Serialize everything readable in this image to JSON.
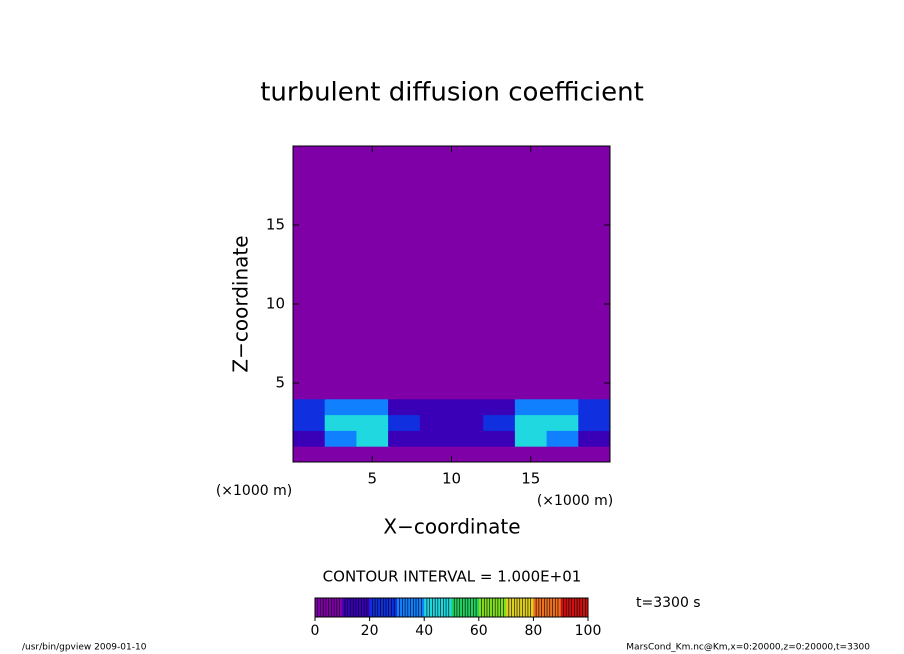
{
  "chart_data": {
    "type": "contour",
    "title": "turbulent diffusion coefficient",
    "xlabel": "X−coordinate",
    "ylabel": "Z−coordinate",
    "xunit": "(×1000 m)",
    "yunit": "(×1000 m)",
    "xlim": [
      0,
      20
    ],
    "xticks": [
      5,
      10,
      15
    ],
    "ylim": [
      0,
      20
    ],
    "yticks": [
      5,
      10,
      15
    ],
    "x": [
      1,
      3,
      5,
      7,
      9,
      11,
      13,
      15,
      17,
      19
    ],
    "z": [
      0.5,
      1.5,
      2.5,
      3.5,
      4.5,
      7,
      10,
      13,
      16,
      19
    ],
    "values": [
      [
        5,
        5,
        5,
        5,
        5,
        5,
        5,
        5,
        5,
        5
      ],
      [
        10,
        30,
        40,
        15,
        15,
        15,
        15,
        40,
        30,
        10
      ],
      [
        25,
        40,
        45,
        20,
        15,
        15,
        20,
        45,
        40,
        25
      ],
      [
        20,
        30,
        30,
        15,
        10,
        10,
        15,
        30,
        30,
        20
      ],
      [
        0,
        0,
        0,
        0,
        0,
        0,
        0,
        0,
        0,
        0
      ],
      [
        0,
        0,
        0,
        0,
        0,
        0,
        0,
        0,
        0,
        0
      ],
      [
        0,
        0,
        0,
        0,
        0,
        0,
        0,
        0,
        0,
        0
      ],
      [
        0,
        0,
        0,
        0,
        0,
        0,
        0,
        0,
        0,
        0
      ],
      [
        0,
        0,
        0,
        0,
        0,
        0,
        0,
        0,
        0,
        0
      ],
      [
        0,
        0,
        0,
        0,
        0,
        0,
        0,
        0,
        0,
        0
      ]
    ],
    "colors": [
      "#8000a8",
      "#3a00b8",
      "#1030e0",
      "#1080ff",
      "#20d8e0",
      "#20d060",
      "#80e020",
      "#e0d020",
      "#f07020",
      "#d01010"
    ],
    "contour_label": "CONTOUR INTERVAL = 1.000E+01",
    "colorbar_lim": [
      0,
      100
    ],
    "colorbar_ticks": [
      0,
      20,
      40,
      60,
      80,
      100
    ],
    "time_label": "t=3300 s",
    "footer_left": "/usr/bin/gpview   2009-01-10",
    "footer_right": "MarsCond_Km.nc@Km,x=0:20000,z=0:20000,t=3300"
  }
}
